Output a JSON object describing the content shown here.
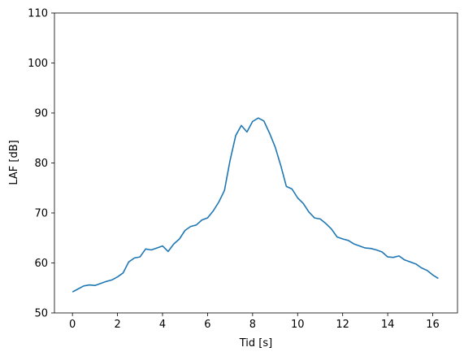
{
  "chart_data": {
    "type": "line",
    "title": "",
    "xlabel": "Tid [s]",
    "ylabel": "LAF [dB]",
    "xlim": [
      -0.8,
      17.1
    ],
    "ylim": [
      50,
      110
    ],
    "xticks": [
      0,
      2,
      4,
      6,
      8,
      10,
      12,
      14,
      16
    ],
    "yticks": [
      50,
      60,
      70,
      80,
      90,
      100,
      110
    ],
    "grid": false,
    "legend": "none",
    "series": [
      {
        "color": "#1f77b4",
        "x": [
          0.0,
          0.25,
          0.5,
          0.75,
          1.0,
          1.25,
          1.5,
          1.75,
          2.0,
          2.25,
          2.5,
          2.75,
          3.0,
          3.25,
          3.5,
          3.75,
          4.0,
          4.25,
          4.5,
          4.75,
          5.0,
          5.25,
          5.5,
          5.75,
          6.0,
          6.25,
          6.5,
          6.75,
          7.0,
          7.25,
          7.5,
          7.75,
          8.0,
          8.25,
          8.5,
          8.75,
          9.0,
          9.25,
          9.5,
          9.75,
          10.0,
          10.25,
          10.5,
          10.75,
          11.0,
          11.25,
          11.5,
          11.75,
          12.0,
          12.25,
          12.5,
          12.75,
          13.0,
          13.25,
          13.5,
          13.75,
          14.0,
          14.25,
          14.5,
          14.75,
          15.0,
          15.25,
          15.5,
          15.75,
          16.0,
          16.25
        ],
        "values": [
          54.2,
          54.8,
          55.4,
          55.6,
          55.5,
          55.9,
          56.3,
          56.6,
          57.2,
          58.0,
          60.2,
          61.0,
          61.2,
          62.8,
          62.6,
          63.0,
          63.4,
          62.3,
          63.8,
          64.8,
          66.5,
          67.3,
          67.6,
          68.6,
          69.0,
          70.4,
          72.2,
          74.5,
          80.5,
          85.5,
          87.5,
          86.2,
          88.3,
          89.0,
          88.4,
          86.0,
          83.2,
          79.5,
          75.3,
          74.8,
          73.0,
          71.9,
          70.2,
          69.0,
          68.8,
          67.9,
          66.8,
          65.2,
          64.8,
          64.5,
          63.8,
          63.4,
          63.0,
          62.9,
          62.6,
          62.2,
          61.2,
          61.1,
          61.4,
          60.6,
          60.2,
          59.8,
          59.0,
          58.5,
          57.6,
          56.9
        ]
      }
    ]
  }
}
